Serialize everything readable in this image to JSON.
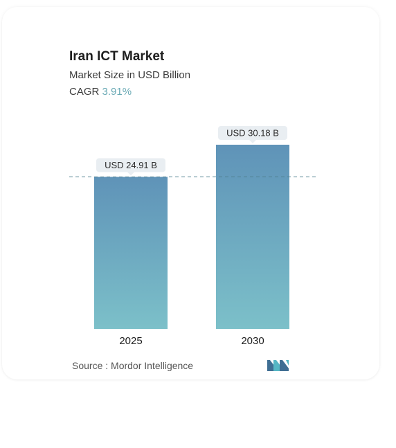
{
  "header": {
    "title": "Iran ICT Market",
    "subtitle": "Market Size in USD Billion",
    "cagr_label": "CAGR",
    "cagr_value": "3.91%"
  },
  "footer": {
    "source_label": "Source :",
    "source_name": "Mordor Intelligence"
  },
  "colors": {
    "bar_top": "#5f93b8",
    "bar_bottom": "#7cc0c9",
    "label_bg": "#e9eef2",
    "dashed_line": "#4e7f8f",
    "cagr_accent": "#6aaab5",
    "logo_dark": "#3f6e93",
    "logo_light": "#55b6c4"
  },
  "chart_data": {
    "type": "bar",
    "categories": [
      "2025",
      "2030"
    ],
    "values": [
      24.91,
      30.18
    ],
    "value_labels": [
      "USD 24.91 B",
      "USD 30.18 B"
    ],
    "unit": "USD Billion",
    "reference_line": 24.91,
    "grid": false,
    "legend": "none"
  }
}
